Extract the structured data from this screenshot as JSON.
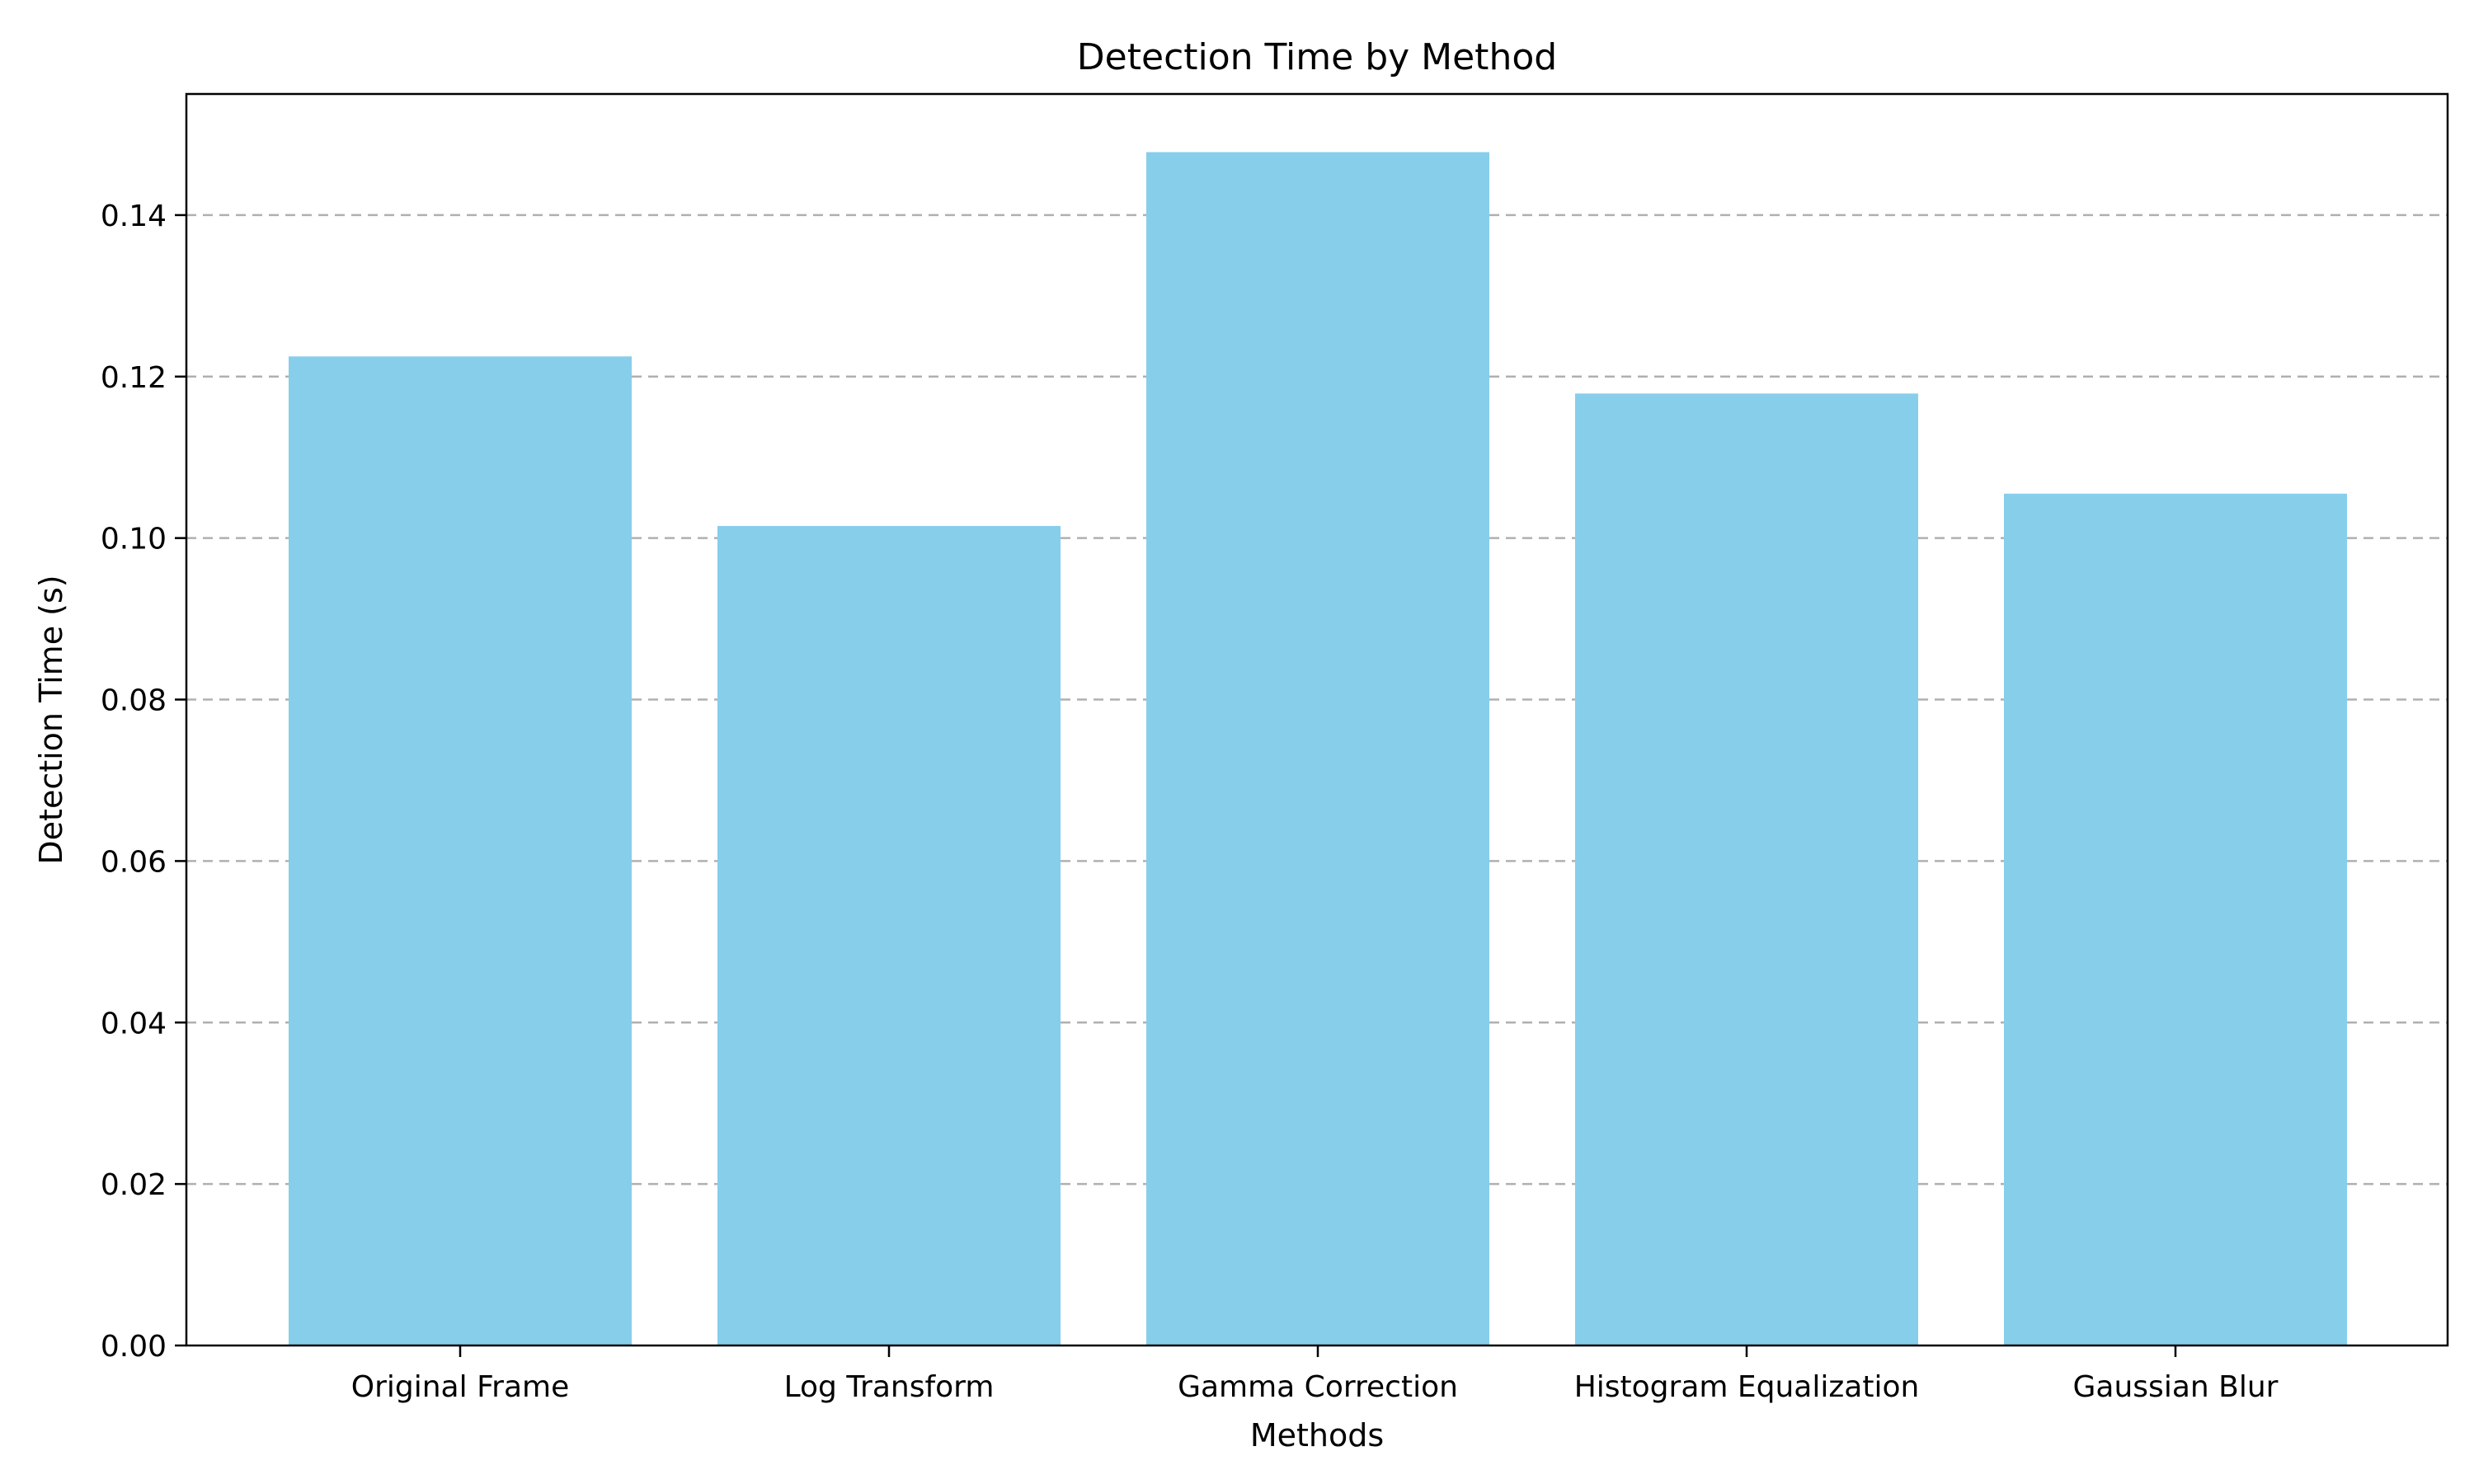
{
  "chart_data": {
    "type": "bar",
    "title": "Detection Time by Method",
    "xlabel": "Methods",
    "ylabel": "Detection Time (s)",
    "categories": [
      "Original Frame",
      "Log Transform",
      "Gamma Correction",
      "Histogram Equalization",
      "Gaussian Blur"
    ],
    "values": [
      0.1225,
      0.1015,
      0.1478,
      0.1179,
      0.1055
    ],
    "ylim": [
      0,
      0.155
    ],
    "yticks": [
      "0.00",
      "0.02",
      "0.04",
      "0.06",
      "0.08",
      "0.10",
      "0.12",
      "0.14"
    ],
    "bar_color": "#87CEEB",
    "grid": "y-dashed",
    "legend": "none"
  }
}
